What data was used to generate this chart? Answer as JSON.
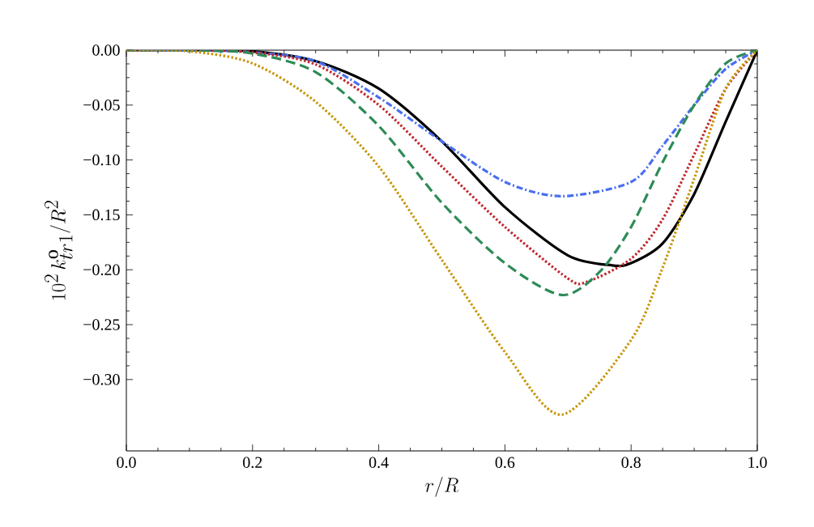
{
  "chart_data": {
    "type": "line",
    "xlabel": "r/R",
    "ylabel": "10^2\\, k^{\\rm o}_{tr1}/R^2",
    "xlim": [
      0,
      1
    ],
    "ylim": [
      -0.365,
      0
    ],
    "xticks": [
      {
        "value": 0,
        "label": "0.0"
      },
      {
        "value": 0.2,
        "label": "0.2"
      },
      {
        "value": 0.4,
        "label": "0.4"
      },
      {
        "value": 0.6,
        "label": "0.6"
      },
      {
        "value": 0.8,
        "label": "0.8"
      },
      {
        "value": 1,
        "label": "1.0"
      }
    ],
    "yticks": [
      {
        "value": 0,
        "label": "0.00"
      },
      {
        "value": -0.05,
        "label": "−0.05"
      },
      {
        "value": -0.1,
        "label": "−0.10"
      },
      {
        "value": -0.15,
        "label": "−0.15"
      },
      {
        "value": -0.2,
        "label": "−0.20"
      },
      {
        "value": -0.25,
        "label": "−0.25"
      },
      {
        "value": -0.3,
        "label": "−0.30"
      }
    ],
    "grid": false,
    "series": [
      {
        "color": "#000000",
        "line_style": "solid",
        "x": [
          0,
          0.1,
          0.2,
          0.3,
          0.4,
          0.5,
          0.6,
          0.7,
          0.77,
          0.8,
          0.85,
          0.9,
          0.95,
          1
        ],
        "values": [
          0,
          0,
          -0.001,
          -0.01,
          -0.035,
          -0.083,
          -0.143,
          -0.187,
          -0.196,
          -0.194,
          -0.176,
          -0.131,
          -0.065,
          0
        ]
      },
      {
        "color": "#4a6ff0",
        "line_style": "dashdot",
        "x": [
          0,
          0.1,
          0.2,
          0.3,
          0.4,
          0.5,
          0.6,
          0.69,
          0.8,
          0.85,
          0.9,
          0.95,
          1
        ],
        "values": [
          0,
          0,
          -0.002,
          -0.01,
          -0.043,
          -0.083,
          -0.12,
          -0.133,
          -0.12,
          -0.087,
          -0.05,
          -0.017,
          0
        ]
      },
      {
        "color": "#c0272d",
        "line_style": "dotted",
        "x": [
          0,
          0.1,
          0.2,
          0.3,
          0.4,
          0.5,
          0.6,
          0.7,
          0.73,
          0.8,
          0.85,
          0.9,
          0.95,
          1
        ],
        "values": [
          0,
          0,
          -0.002,
          -0.013,
          -0.05,
          -0.106,
          -0.161,
          -0.208,
          -0.211,
          -0.19,
          -0.154,
          -0.095,
          -0.035,
          0
        ]
      },
      {
        "color": "#2e8b57",
        "line_style": "dashed",
        "x": [
          0,
          0.1,
          0.2,
          0.3,
          0.4,
          0.5,
          0.6,
          0.69,
          0.75,
          0.8,
          0.85,
          0.9,
          0.95,
          1
        ],
        "values": [
          0,
          0,
          -0.003,
          -0.02,
          -0.069,
          -0.139,
          -0.194,
          -0.223,
          -0.202,
          -0.161,
          -0.102,
          -0.05,
          -0.012,
          0
        ]
      },
      {
        "color": "#c8960a",
        "line_style": "dotted",
        "x": [
          0,
          0.1,
          0.2,
          0.3,
          0.4,
          0.5,
          0.6,
          0.69,
          0.8,
          0.85,
          0.9,
          0.95,
          1
        ],
        "values": [
          0,
          -0.001,
          -0.012,
          -0.047,
          -0.106,
          -0.191,
          -0.275,
          -0.332,
          -0.264,
          -0.198,
          -0.117,
          -0.035,
          0
        ]
      }
    ]
  }
}
